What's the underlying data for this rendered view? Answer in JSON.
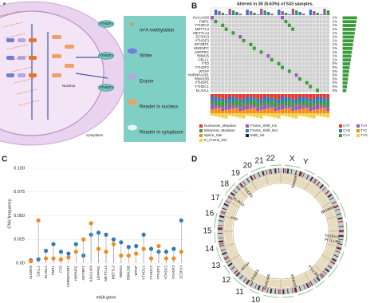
{
  "panel_labels": [
    "A",
    "B",
    "C",
    "D"
  ],
  "panel_a": {
    "legend": [
      "m⁶A methylation",
      "Writer",
      "Eraser",
      "Reader in nucleus",
      "Reader in cytoplasm"
    ],
    "nucleus": "Nucleus",
    "cytoplasm": "Cytoplasm",
    "proteins": [
      "YTHDF1",
      "YTHDF2",
      "YTHDF3"
    ]
  },
  "panel_b": {
    "title": "Altered in 30 (5.63%) of 533 samples.",
    "genes": [
      "KIAA1429",
      "FMR1",
      "YTHDC2",
      "METTL3",
      "METTL14",
      "ZC3H13",
      "YTHDF3",
      "IGF2BP1",
      "HNRNPC",
      "LRPPRC",
      "RBM15",
      "CBLL1",
      "FTO",
      "YTHDF2",
      "WTAP",
      "HNRNPA2B1",
      "RBM15B",
      "YTHDF1",
      "YTHDC1",
      "ELAVL1"
    ],
    "percents": [
      "1%",
      "1%",
      "1%",
      "1%",
      "1%",
      "1%",
      "1%",
      "1%",
      "1%",
      "1%",
      "1%",
      "1%",
      "0%",
      "0%",
      "0%",
      "0%",
      "0%",
      "0%",
      "0%",
      "0%"
    ],
    "legend": [
      "Nonsense_Mutation",
      "Missense_Mutation",
      "Splice_Site",
      "In_Frame_Del",
      "Frame_Shift_Ins",
      "Frame_Shift_Del",
      "Multi_Hit"
    ],
    "snv_legend": [
      "C>T",
      "C>G",
      "C>A",
      "T>A",
      "T>C",
      "T>G"
    ]
  },
  "chart_data": {
    "type": "lollipop",
    "y_label": "CNV frequency",
    "x_label": "m6A gene",
    "categories": [
      "ALKBH5",
      "CBLL1",
      "ELAVL1",
      "FMR1",
      "FTO",
      "HNRNPA2B1",
      "HNRNPC",
      "IGF2BP1",
      "KIAA1429",
      "LRPPRC",
      "METTL14",
      "METTL3",
      "RBM15",
      "RBM15B",
      "WTAP",
      "YTHDC1",
      "YTHDC2",
      "YTHDF1",
      "YTHDF2",
      "YTHDF3",
      "ZC3H13"
    ],
    "series": [
      {
        "color": "#2f7ab9",
        "values": [
          0.003,
          0.004,
          0.013,
          0.02,
          0.012,
          0.01,
          0.02,
          0.008,
          0.03,
          0.032,
          0.03,
          0.025,
          0.022,
          0.017,
          0.018,
          0.03,
          0.015,
          0.012,
          0.012,
          0.015,
          0.045
        ]
      },
      {
        "color": "#f28a1e",
        "values": [
          0.002,
          0.045,
          0.005,
          0.005,
          0.004,
          0.006,
          0.012,
          0.025,
          0.042,
          0.015,
          0.012,
          0.02,
          0.008,
          0.008,
          0.01,
          0.015,
          0.005,
          0.018,
          0.005,
          0.005,
          0.012
        ]
      }
    ],
    "ylim": [
      0,
      0.105
    ],
    "yticks": [
      {
        "value": 0,
        "label": "0.00"
      },
      0.025,
      {
        "value": 0.05,
        "label": "0.050"
      },
      0.075,
      {
        "value": 0.1,
        "label": "0.100"
      }
    ]
  },
  "panel_d": {
    "chromosomes": [
      "10",
      "11",
      "12",
      "13",
      "14",
      "15",
      "16",
      "17",
      "18",
      "19",
      "20",
      "21",
      "22",
      "X",
      "Y"
    ],
    "genes": [
      "FTO",
      "ELAVL1",
      "YTHDF2",
      "LRPPRC",
      "RBM15B",
      "YTHDC1",
      "METTL14",
      "METTL3",
      "ZC3H13",
      "KIAA1429",
      "YTHDF3",
      "WTAP"
    ]
  }
}
